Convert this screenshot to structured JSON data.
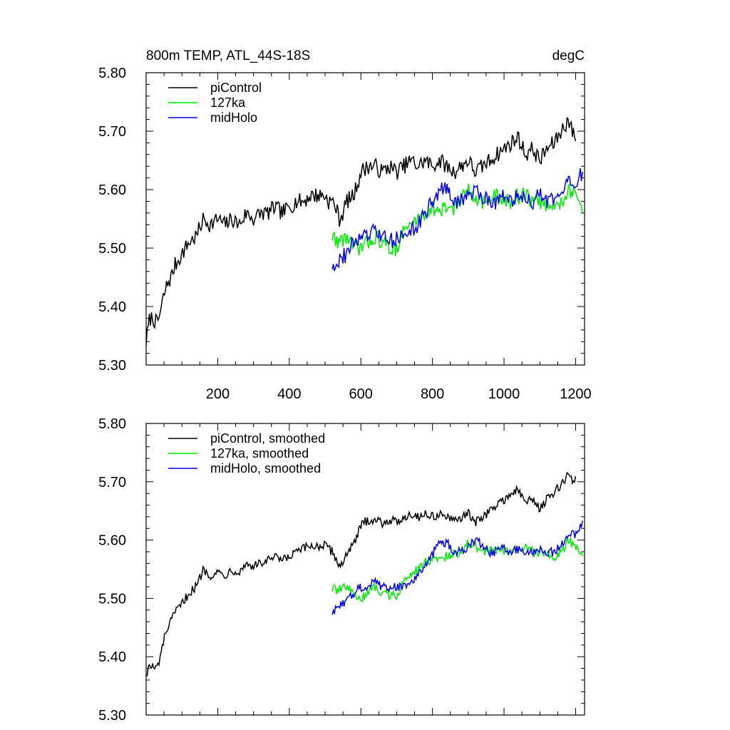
{
  "title_left": "800m TEMP, ATL_44S-18S",
  "title_right": "degC",
  "colors": {
    "piControl": "#000000",
    "127ka": "#00ee00",
    "midHolo": "#0000ee"
  },
  "chart_data": [
    {
      "type": "line",
      "title": "800m TEMP, ATL_44S-18S",
      "units": "degC",
      "xlim": [
        0,
        1225
      ],
      "ylim": [
        5.3,
        5.8
      ],
      "xticks": [
        200,
        400,
        600,
        800,
        1000,
        1200
      ],
      "xtick_labels": [
        "200",
        "400",
        "600",
        "800",
        "1000",
        "1200"
      ],
      "yticks": [
        5.3,
        5.4,
        5.5,
        5.6,
        5.7,
        5.8
      ],
      "ytick_labels": [
        "5.30",
        "5.40",
        "5.50",
        "5.60",
        "5.70",
        "5.80"
      ],
      "legend_position": "top-left",
      "series": [
        {
          "name": "piControl",
          "color": "#000000",
          "x": [
            0,
            10,
            20,
            30,
            40,
            50,
            60,
            70,
            80,
            100,
            120,
            140,
            160,
            180,
            200,
            220,
            240,
            260,
            280,
            300,
            320,
            340,
            360,
            380,
            400,
            420,
            440,
            460,
            480,
            500,
            510,
            520,
            530,
            540,
            550,
            560,
            580,
            600,
            620,
            640,
            660,
            680,
            700,
            720,
            740,
            760,
            780,
            800,
            820,
            840,
            860,
            880,
            900,
            920,
            940,
            960,
            980,
            1000,
            1020,
            1040,
            1060,
            1080,
            1100,
            1120,
            1140,
            1160,
            1170,
            1180,
            1190,
            1200
          ],
          "y": [
            5.34,
            5.38,
            5.38,
            5.37,
            5.39,
            5.42,
            5.44,
            5.45,
            5.47,
            5.49,
            5.51,
            5.52,
            5.55,
            5.54,
            5.55,
            5.54,
            5.55,
            5.54,
            5.56,
            5.55,
            5.56,
            5.56,
            5.57,
            5.56,
            5.57,
            5.58,
            5.58,
            5.59,
            5.59,
            5.59,
            5.58,
            5.58,
            5.57,
            5.55,
            5.56,
            5.58,
            5.59,
            5.63,
            5.64,
            5.64,
            5.63,
            5.64,
            5.63,
            5.64,
            5.65,
            5.64,
            5.65,
            5.64,
            5.65,
            5.64,
            5.63,
            5.64,
            5.65,
            5.63,
            5.64,
            5.65,
            5.66,
            5.67,
            5.68,
            5.69,
            5.66,
            5.67,
            5.65,
            5.67,
            5.68,
            5.7,
            5.71,
            5.72,
            5.7,
            5.69
          ]
        },
        {
          "name": "127ka",
          "color": "#00ee00",
          "x": [
            520,
            540,
            560,
            580,
            600,
            620,
            640,
            660,
            680,
            700,
            720,
            740,
            760,
            780,
            800,
            820,
            840,
            860,
            880,
            900,
            920,
            940,
            960,
            980,
            1000,
            1020,
            1040,
            1060,
            1080,
            1100,
            1120,
            1140,
            1160,
            1180,
            1200,
            1220
          ],
          "y": [
            5.52,
            5.51,
            5.52,
            5.5,
            5.5,
            5.51,
            5.52,
            5.51,
            5.5,
            5.5,
            5.53,
            5.54,
            5.55,
            5.56,
            5.57,
            5.56,
            5.57,
            5.57,
            5.58,
            5.6,
            5.59,
            5.58,
            5.58,
            5.59,
            5.58,
            5.58,
            5.59,
            5.59,
            5.58,
            5.58,
            5.57,
            5.57,
            5.58,
            5.6,
            5.59,
            5.57
          ]
        },
        {
          "name": "midHolo",
          "color": "#0000ee",
          "x": [
            520,
            540,
            560,
            580,
            600,
            620,
            640,
            660,
            680,
            700,
            720,
            740,
            760,
            780,
            800,
            820,
            840,
            860,
            880,
            900,
            920,
            940,
            960,
            980,
            1000,
            1020,
            1040,
            1060,
            1080,
            1100,
            1120,
            1140,
            1160,
            1180,
            1200,
            1220
          ],
          "y": [
            5.47,
            5.48,
            5.49,
            5.51,
            5.52,
            5.52,
            5.53,
            5.52,
            5.51,
            5.52,
            5.52,
            5.53,
            5.54,
            5.56,
            5.58,
            5.6,
            5.6,
            5.58,
            5.58,
            5.59,
            5.6,
            5.59,
            5.58,
            5.58,
            5.59,
            5.58,
            5.59,
            5.58,
            5.58,
            5.59,
            5.58,
            5.58,
            5.59,
            5.61,
            5.61,
            5.63
          ]
        }
      ]
    },
    {
      "type": "line",
      "xlim": [
        0,
        1225
      ],
      "ylim": [
        5.3,
        5.8
      ],
      "xticks": [
        200,
        400,
        600,
        800,
        1000,
        1200
      ],
      "yticks": [
        5.3,
        5.4,
        5.5,
        5.6,
        5.7,
        5.8
      ],
      "ytick_labels": [
        "5.30",
        "5.40",
        "5.50",
        "5.60",
        "5.70",
        "5.80"
      ],
      "legend_position": "top-left",
      "series": [
        {
          "name": "piControl, smoothed",
          "color": "#000000",
          "x": [
            0,
            10,
            20,
            30,
            40,
            50,
            60,
            70,
            80,
            100,
            120,
            140,
            160,
            180,
            200,
            220,
            240,
            260,
            280,
            300,
            320,
            340,
            360,
            380,
            400,
            420,
            440,
            460,
            480,
            500,
            510,
            520,
            530,
            540,
            550,
            560,
            580,
            600,
            620,
            640,
            660,
            680,
            700,
            720,
            740,
            760,
            780,
            800,
            820,
            840,
            860,
            880,
            900,
            920,
            940,
            960,
            980,
            1000,
            1020,
            1040,
            1060,
            1080,
            1100,
            1120,
            1140,
            1160,
            1170,
            1180,
            1190,
            1200
          ],
          "y": [
            5.37,
            5.385,
            5.38,
            5.38,
            5.4,
            5.43,
            5.45,
            5.46,
            5.475,
            5.49,
            5.51,
            5.52,
            5.55,
            5.54,
            5.545,
            5.54,
            5.55,
            5.545,
            5.56,
            5.555,
            5.56,
            5.565,
            5.57,
            5.565,
            5.57,
            5.58,
            5.585,
            5.59,
            5.59,
            5.59,
            5.585,
            5.58,
            5.57,
            5.555,
            5.56,
            5.58,
            5.59,
            5.625,
            5.635,
            5.635,
            5.63,
            5.635,
            5.63,
            5.64,
            5.645,
            5.64,
            5.645,
            5.64,
            5.645,
            5.64,
            5.63,
            5.64,
            5.645,
            5.63,
            5.64,
            5.65,
            5.66,
            5.67,
            5.68,
            5.685,
            5.665,
            5.67,
            5.655,
            5.67,
            5.68,
            5.695,
            5.705,
            5.715,
            5.7,
            5.705
          ]
        },
        {
          "name": "127ka, smoothed",
          "color": "#00ee00",
          "x": [
            520,
            540,
            560,
            580,
            600,
            620,
            640,
            660,
            680,
            700,
            720,
            740,
            760,
            780,
            800,
            820,
            840,
            860,
            880,
            900,
            920,
            940,
            960,
            980,
            1000,
            1020,
            1040,
            1060,
            1080,
            1100,
            1120,
            1140,
            1160,
            1180,
            1200,
            1220
          ],
          "y": [
            5.515,
            5.515,
            5.52,
            5.505,
            5.5,
            5.51,
            5.52,
            5.51,
            5.505,
            5.505,
            5.53,
            5.54,
            5.55,
            5.56,
            5.57,
            5.565,
            5.575,
            5.575,
            5.58,
            5.595,
            5.59,
            5.58,
            5.58,
            5.585,
            5.58,
            5.58,
            5.585,
            5.585,
            5.58,
            5.58,
            5.575,
            5.57,
            5.58,
            5.6,
            5.59,
            5.575
          ]
        },
        {
          "name": "midHolo, smoothed",
          "color": "#0000ee",
          "x": [
            520,
            540,
            560,
            580,
            600,
            620,
            640,
            660,
            680,
            700,
            720,
            740,
            760,
            780,
            800,
            820,
            840,
            860,
            880,
            900,
            920,
            940,
            960,
            980,
            1000,
            1020,
            1040,
            1060,
            1080,
            1100,
            1120,
            1140,
            1160,
            1180,
            1200,
            1220
          ],
          "y": [
            5.475,
            5.485,
            5.495,
            5.51,
            5.52,
            5.52,
            5.53,
            5.52,
            5.515,
            5.52,
            5.52,
            5.53,
            5.54,
            5.555,
            5.575,
            5.595,
            5.595,
            5.58,
            5.58,
            5.59,
            5.6,
            5.59,
            5.58,
            5.58,
            5.585,
            5.58,
            5.585,
            5.58,
            5.58,
            5.585,
            5.58,
            5.58,
            5.59,
            5.61,
            5.61,
            5.63
          ]
        }
      ]
    }
  ]
}
